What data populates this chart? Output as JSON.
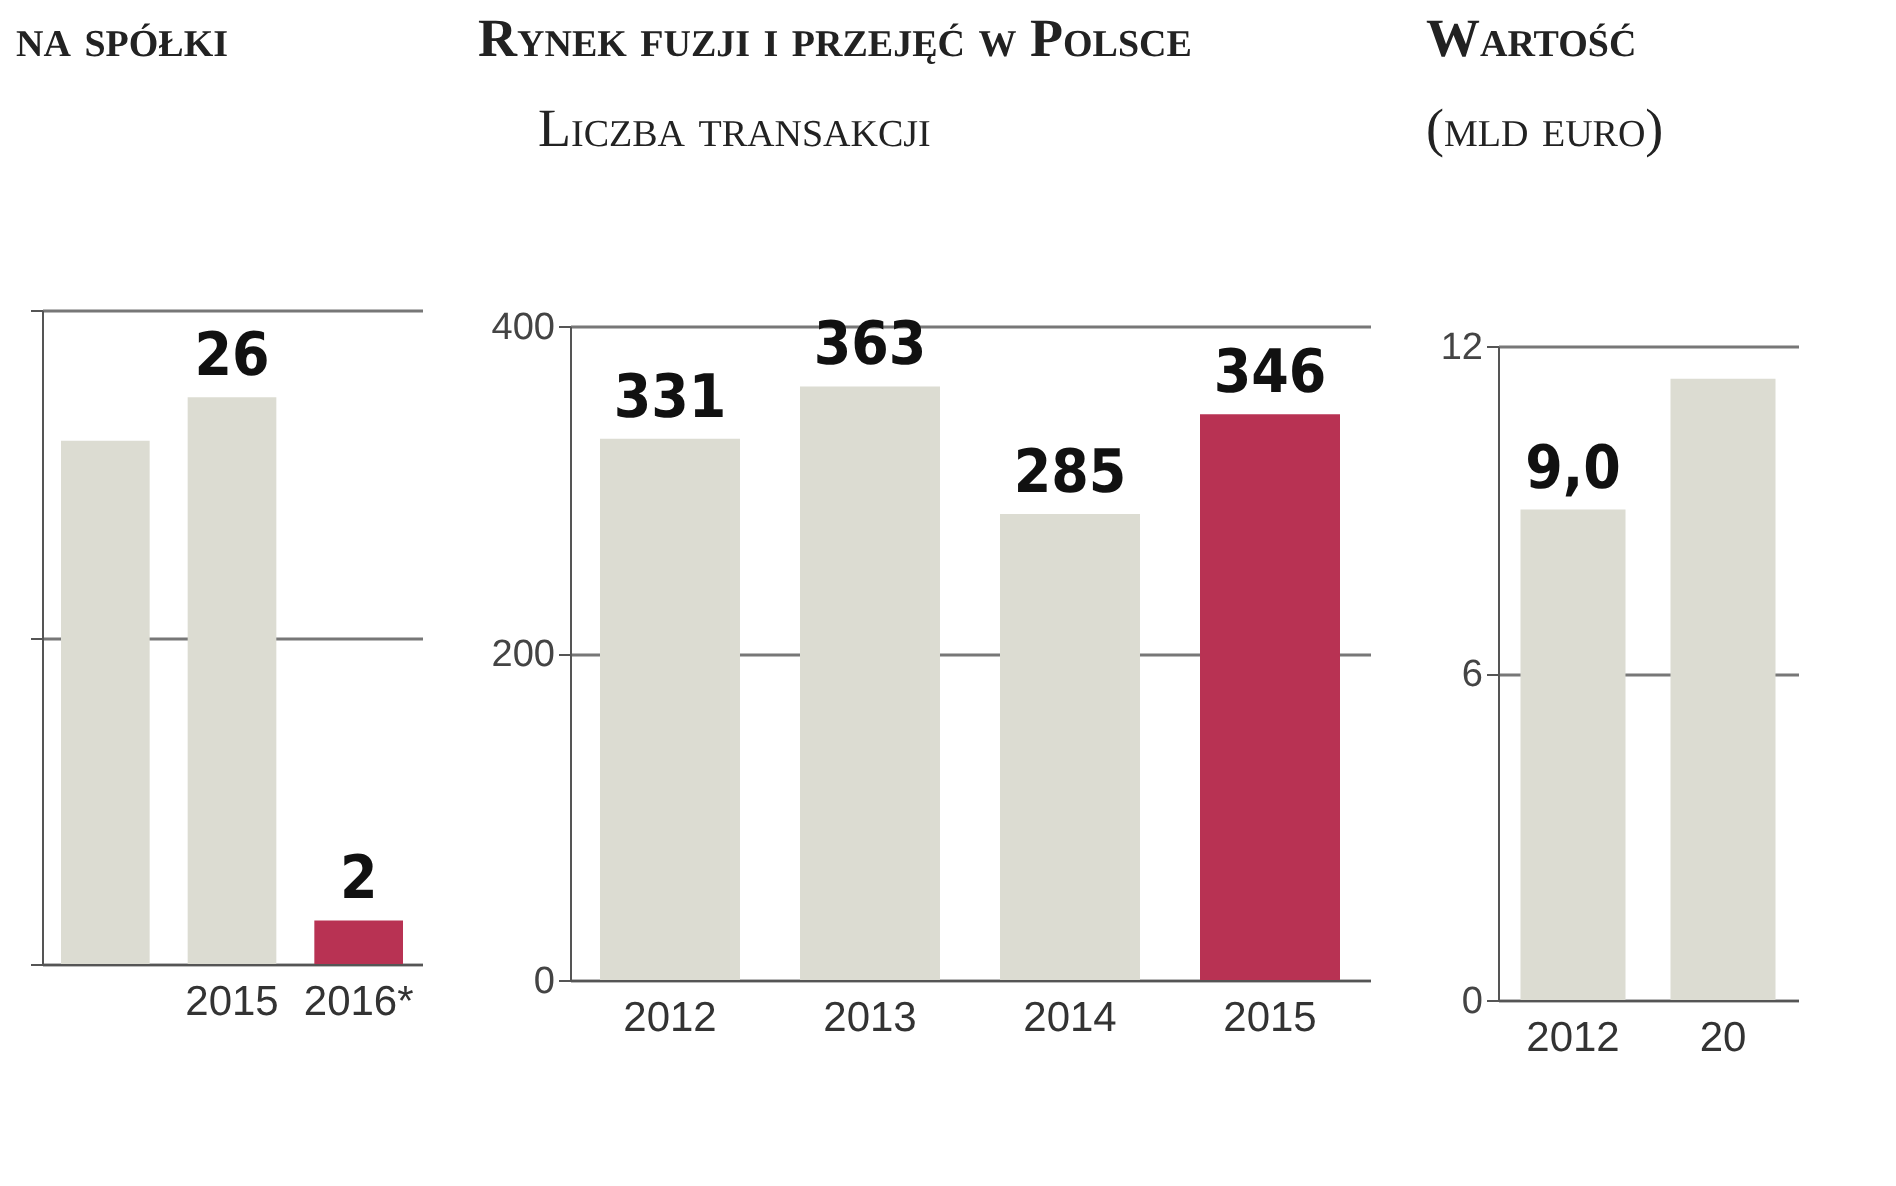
{
  "chart_data": [
    {
      "type": "bar",
      "title": "na spółki",
      "categories": [
        null,
        "2015",
        "2016*"
      ],
      "values": [
        24,
        26,
        2
      ],
      "colors": [
        "#dcdcd2",
        "#dcdcd2",
        "#b83253"
      ],
      "value_labels": [
        null,
        "26",
        "2"
      ],
      "ylim": [
        0,
        30
      ],
      "yticks": [
        {
          "value": 0,
          "label": null
        },
        {
          "value": 15,
          "label": null
        },
        {
          "value": 30,
          "label": null
        }
      ],
      "tick_labels": "x",
      "grid": "y"
    },
    {
      "type": "bar",
      "title": "Rynek fuzji i przejęć w Polsce",
      "subtitle": "Liczba transakcji",
      "categories": [
        "2012",
        "2013",
        "2014",
        "2015"
      ],
      "values": [
        331,
        363,
        285,
        346
      ],
      "colors": [
        "#dcdcd2",
        "#dcdcd2",
        "#dcdcd2",
        "#b83253"
      ],
      "data_labels": true,
      "ylim": [
        0,
        400
      ],
      "yticks": [
        0,
        200,
        400
      ],
      "grid": "y"
    },
    {
      "type": "bar",
      "title": "Wartość",
      "subtitle": "(mld euro)",
      "categories": [
        "2012",
        "20"
      ],
      "values": [
        9.0,
        11.4
      ],
      "colors": [
        "#dcdcd2",
        "#dcdcd2"
      ],
      "value_labels": [
        "9,0",
        null
      ],
      "ylim": [
        0,
        12
      ],
      "yticks": [
        0,
        6,
        12
      ],
      "grid": "y"
    }
  ]
}
